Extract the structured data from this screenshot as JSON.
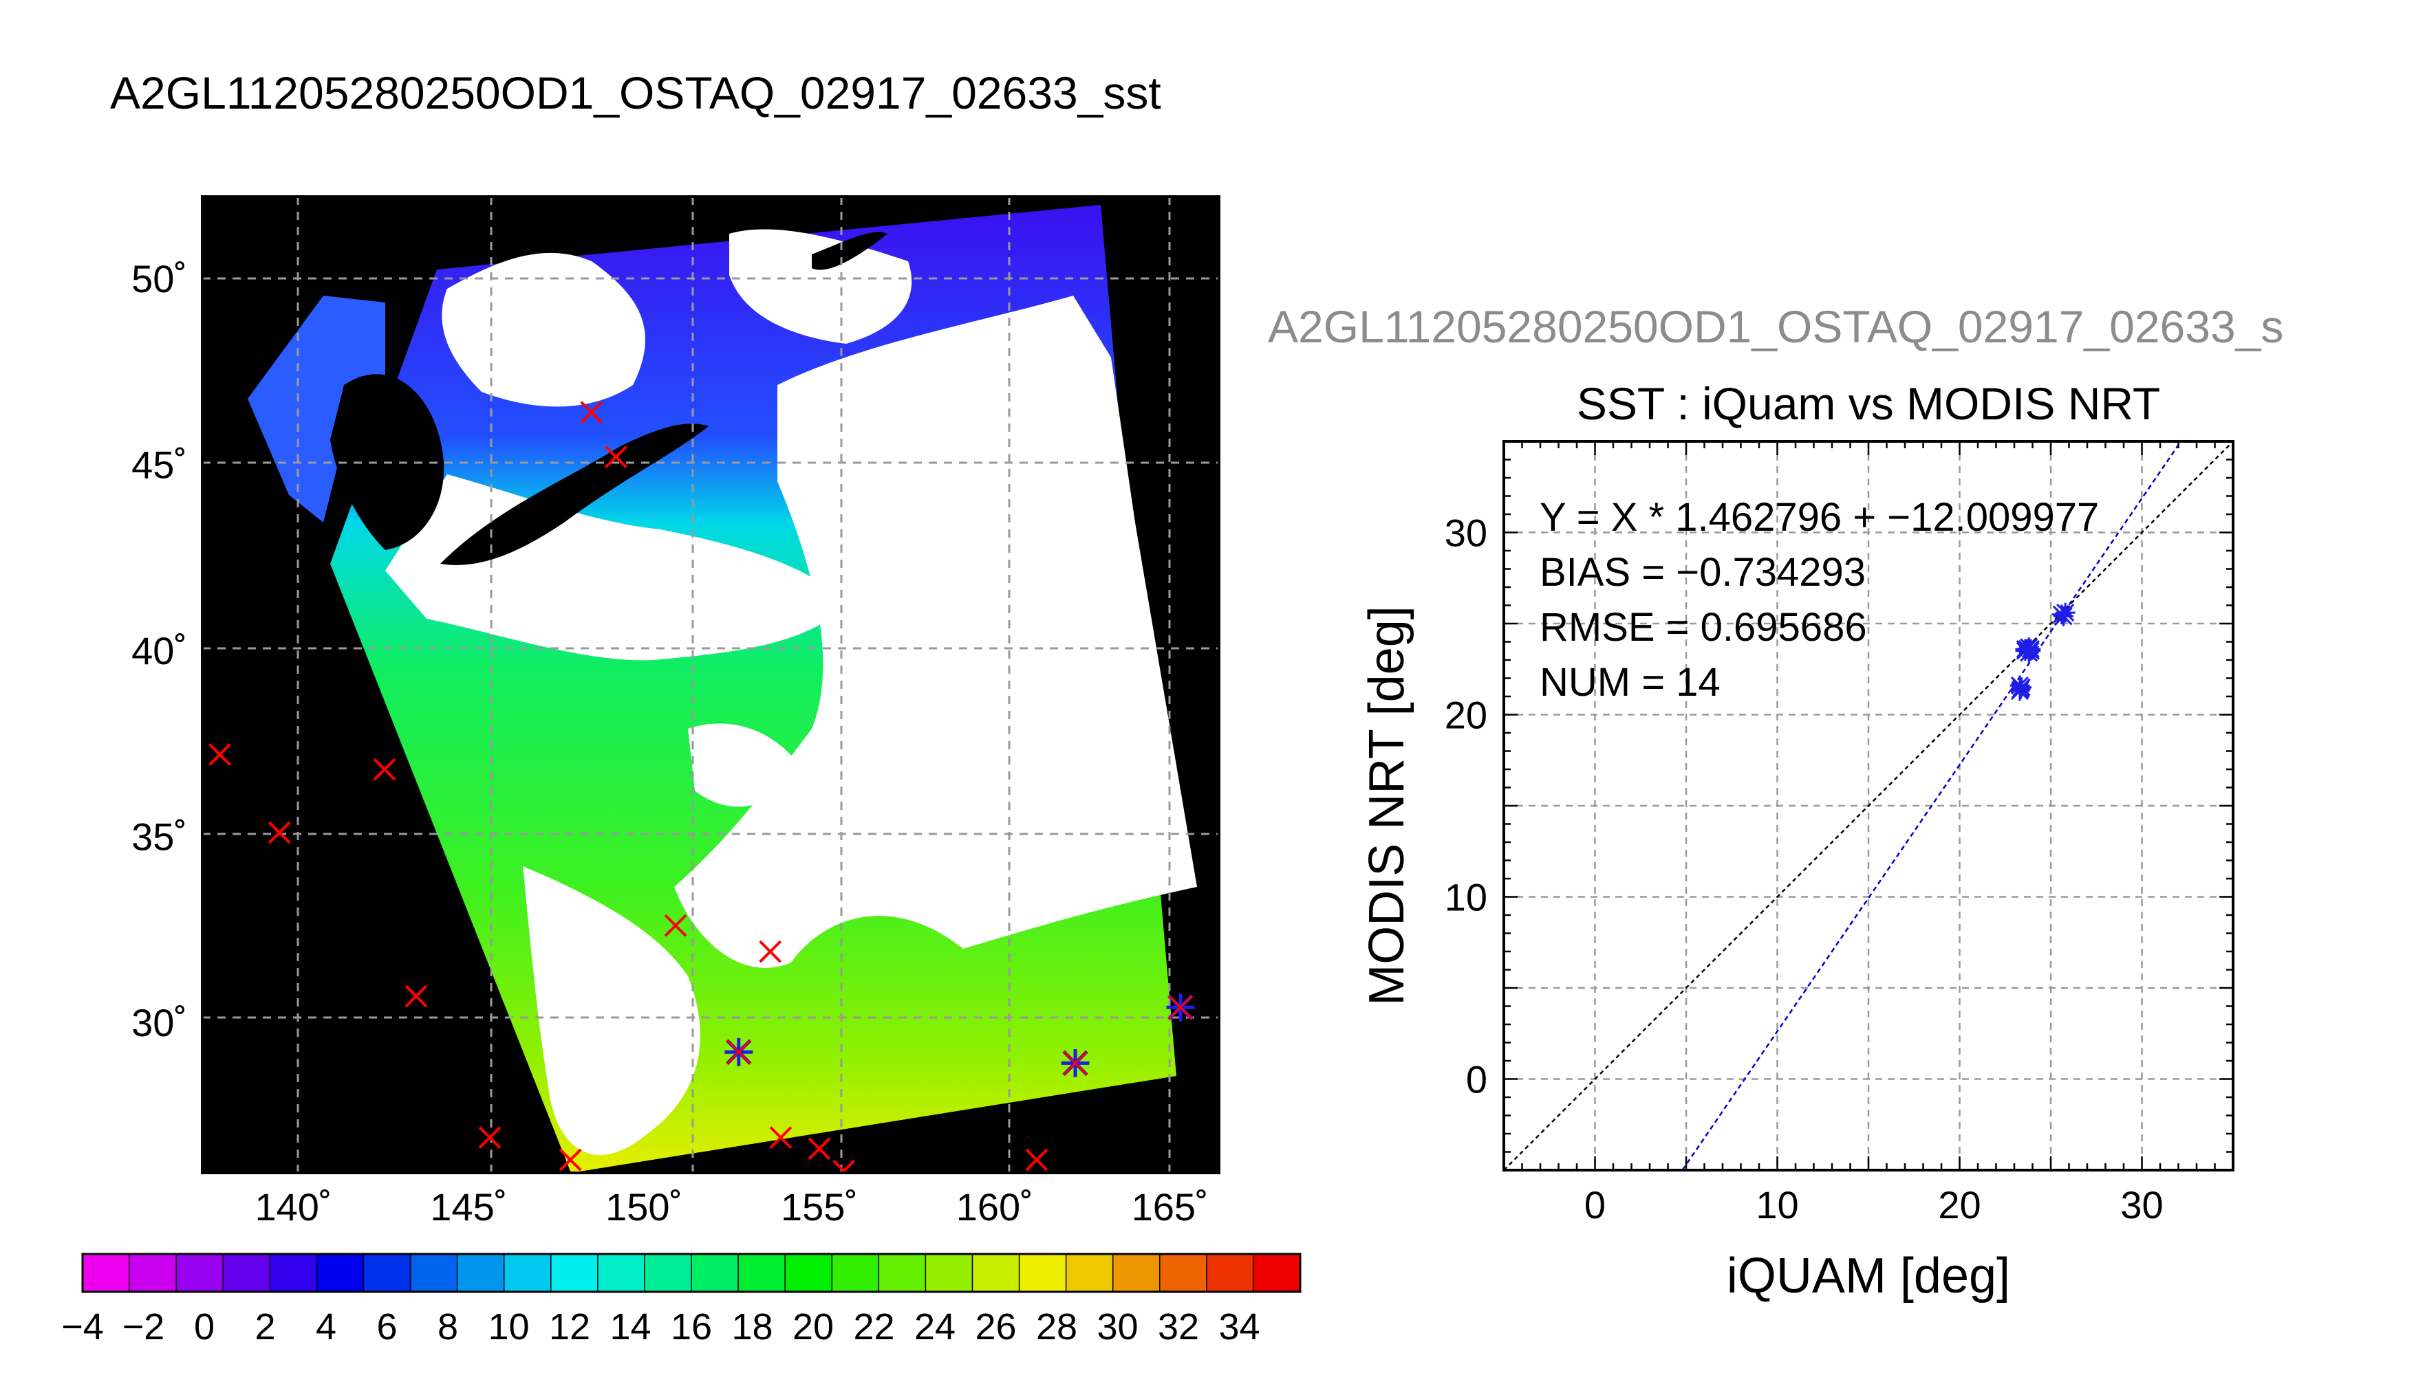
{
  "figure_title": "A2GL11205280250OD1_OSTAQ_02917_02633_sst",
  "colors": {
    "background": "#ffffff",
    "map_background": "#000000",
    "grid": "#9a9a9a",
    "marker": "#ff0000",
    "matched_marker": "#1e1ee6",
    "regression_line": "#0000cc",
    "identity_line": "#000000",
    "subtitle": "#8c8c8c"
  },
  "map": {
    "lon_ticks": [
      "140˚",
      "145˚",
      "150˚",
      "155˚",
      "160˚",
      "165˚"
    ],
    "lat_ticks": [
      "30˚",
      "35˚",
      "40˚",
      "45˚",
      "50˚"
    ],
    "lon_values": [
      140,
      145,
      150,
      155,
      160,
      165
    ],
    "lat_values": [
      30,
      35,
      40,
      45,
      50
    ],
    "lon_range": [
      137.4,
      166.4
    ],
    "lat_range": [
      25.95,
      52.2
    ],
    "insitu_points": [
      {
        "lon": 137.9,
        "lat": 37.2
      },
      {
        "lon": 139.6,
        "lat": 35.1
      },
      {
        "lon": 142.6,
        "lat": 36.8
      },
      {
        "lon": 143.5,
        "lat": 30.7
      },
      {
        "lon": 145.6,
        "lat": 26.9
      },
      {
        "lon": 147.9,
        "lat": 26.3
      },
      {
        "lon": 148.5,
        "lat": 46.4
      },
      {
        "lon": 149.2,
        "lat": 45.2
      },
      {
        "lon": 150.9,
        "lat": 32.6
      },
      {
        "lon": 153.6,
        "lat": 31.9
      },
      {
        "lon": 153.9,
        "lat": 26.9
      },
      {
        "lon": 155.0,
        "lat": 26.6
      },
      {
        "lon": 155.7,
        "lat": 26.0
      },
      {
        "lon": 161.2,
        "lat": 26.3
      }
    ],
    "matched_points": [
      {
        "lon": 152.7,
        "lat": 29.2
      },
      {
        "lon": 162.3,
        "lat": 28.9
      },
      {
        "lon": 165.3,
        "lat": 30.4
      }
    ]
  },
  "colorbar": {
    "tick_labels": [
      "−4",
      "−2",
      "0",
      "2",
      "4",
      "6",
      "8",
      "10",
      "12",
      "14",
      "16",
      "18",
      "20",
      "22",
      "24",
      "26",
      "28",
      "30",
      "32",
      "34"
    ],
    "range": [
      -4,
      36
    ],
    "palette": [
      "#ee00ee",
      "#c800ee",
      "#9600ee",
      "#6400ee",
      "#3200ee",
      "#0000ee",
      "#0032ee",
      "#0064ee",
      "#0096ee",
      "#00c8ee",
      "#00eeee",
      "#00eec8",
      "#00ee96",
      "#00ee64",
      "#00ee32",
      "#00ee00",
      "#32ee00",
      "#64ee00",
      "#96ee00",
      "#c8ee00",
      "#eeee00",
      "#eec800",
      "#ee9600",
      "#ee6400",
      "#ee3200",
      "#ee0000"
    ]
  },
  "scatter_subtitle": "A2GL11205280250OD1_OSTAQ_02917_02633_s",
  "chart_data": {
    "type": "scatter",
    "title": "SST : iQuam vs MODIS NRT",
    "xlabel": "iQUAM [deg]",
    "ylabel": "MODIS NRT [deg]",
    "xlim": [
      -5,
      35
    ],
    "ylim": [
      -5,
      35
    ],
    "xticks": [
      0,
      10,
      20,
      30
    ],
    "yticks": [
      0,
      10,
      20,
      30
    ],
    "grid": true,
    "annotations": [
      "Y = X * 1.462796 + −12.009977",
      "BIAS = −0.734293",
      "RMSE = 0.695686",
      "NUM = 14"
    ],
    "regression": {
      "slope": 1.462796,
      "intercept": -12.009977
    },
    "identity_line": true,
    "points": [
      {
        "x": 23.3,
        "y": 21.6
      },
      {
        "x": 23.3,
        "y": 21.3
      },
      {
        "x": 23.4,
        "y": 21.5
      },
      {
        "x": 23.6,
        "y": 23.5
      },
      {
        "x": 23.7,
        "y": 23.6
      },
      {
        "x": 23.8,
        "y": 23.4
      },
      {
        "x": 23.9,
        "y": 23.5
      },
      {
        "x": 23.8,
        "y": 23.7
      },
      {
        "x": 23.6,
        "y": 23.6
      },
      {
        "x": 25.7,
        "y": 25.4
      },
      {
        "x": 25.8,
        "y": 25.6
      },
      {
        "x": 25.6,
        "y": 25.5
      },
      {
        "x": 23.35,
        "y": 21.4
      },
      {
        "x": 23.9,
        "y": 23.6
      }
    ]
  }
}
